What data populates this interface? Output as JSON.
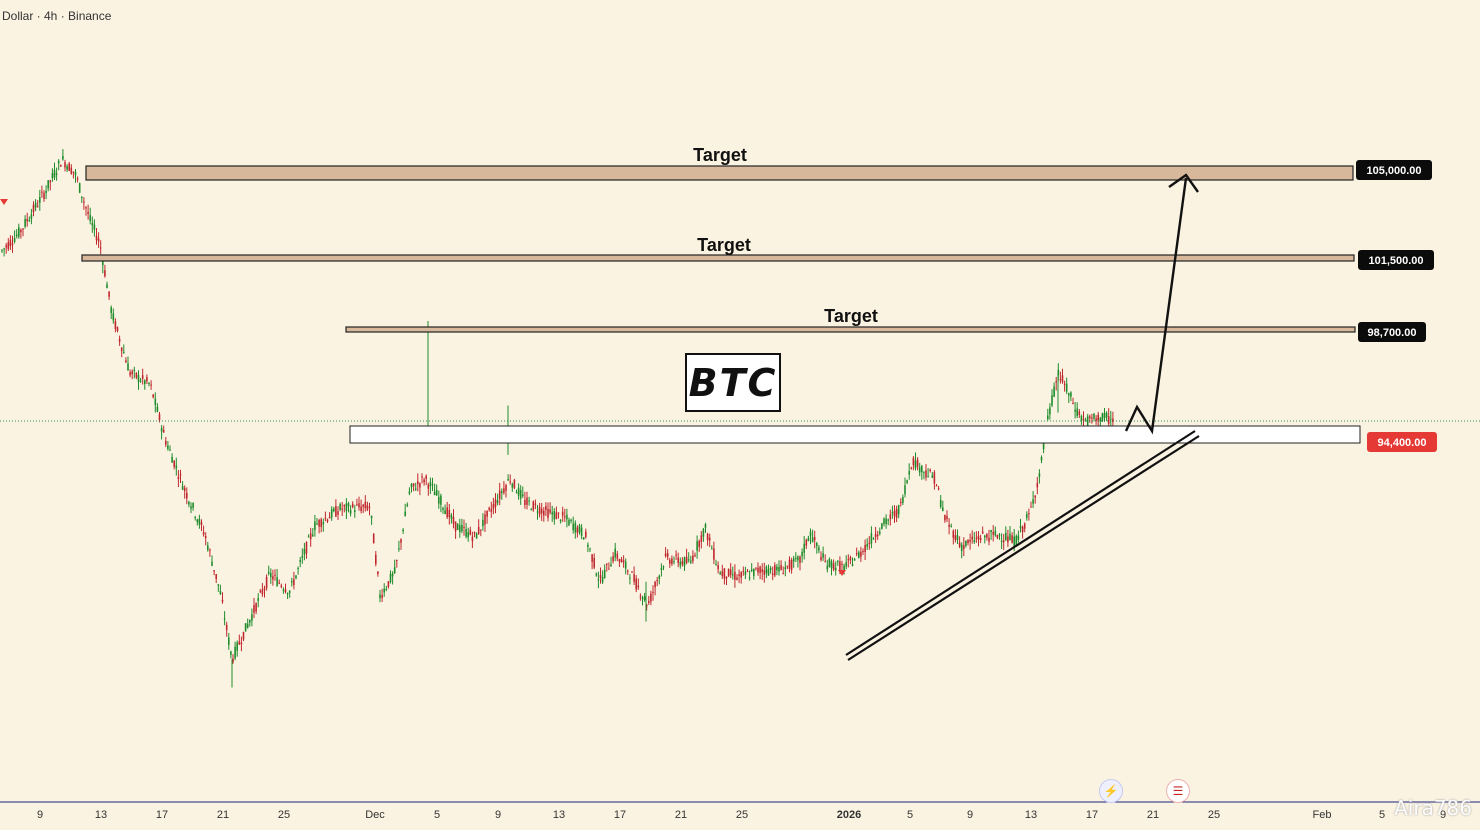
{
  "header": {
    "symbol": "Dollar · 4h · Binance"
  },
  "watermark": "Aira786",
  "annotation": {
    "label": "BTC"
  },
  "chart_data": {
    "type": "candlestick",
    "x_ticks": [
      "9",
      "13",
      "17",
      "21",
      "25",
      "Dec",
      "5",
      "9",
      "13",
      "17",
      "21",
      "25",
      "2026",
      "5",
      "9",
      "13",
      "17",
      "21",
      "25",
      "Feb",
      "5",
      "9"
    ],
    "price_levels": [
      {
        "label": "105,000.00",
        "value": 105000,
        "style": "black"
      },
      {
        "label": "101,500.00",
        "value": 101500,
        "style": "black"
      },
      {
        "label": "98,700.00",
        "value": 98700,
        "style": "black"
      },
      {
        "label": "94,400.00",
        "value": 94400,
        "style": "red"
      }
    ],
    "target_label": "Target",
    "targets": [
      105000,
      101500,
      98700
    ],
    "support_zone": 94400,
    "colors": {
      "up": "#1e8c2b",
      "down": "#c0272d",
      "background": "#fbf3e2",
      "current_line": "#2e8b57",
      "zone_fill": "#d8b89a",
      "price_red": "#e53935"
    }
  }
}
